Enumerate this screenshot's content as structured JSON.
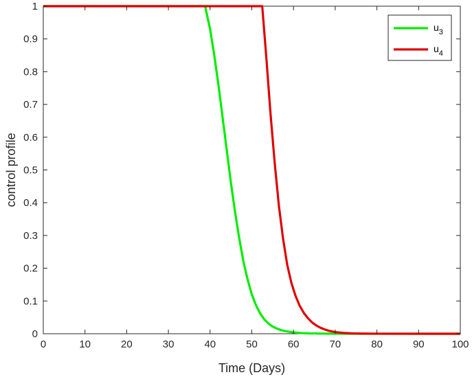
{
  "chart_data": {
    "type": "line",
    "title": "",
    "xlabel": "Time (Days)",
    "ylabel": "control profile",
    "xlim": [
      0,
      100
    ],
    "ylim": [
      0,
      1
    ],
    "xticks": [
      0,
      10,
      20,
      30,
      40,
      50,
      60,
      70,
      80,
      90,
      100
    ],
    "yticks": [
      0,
      0.1,
      0.2,
      0.3,
      0.4,
      0.5,
      0.6,
      0.7,
      0.8,
      0.9,
      1
    ],
    "grid": false,
    "legend_position": "top-right",
    "series": [
      {
        "name": "u",
        "subscript": "3",
        "color": "#00ee00",
        "x": [
          0,
          38.8,
          40,
          41,
          42,
          43,
          44,
          45,
          46,
          47,
          48,
          49,
          50,
          51,
          52,
          53,
          54,
          55,
          56,
          57,
          58,
          59,
          60,
          62,
          64,
          66,
          68,
          70,
          75,
          80,
          90,
          100
        ],
        "y": [
          1,
          1,
          0.93,
          0.85,
          0.76,
          0.66,
          0.56,
          0.46,
          0.37,
          0.29,
          0.22,
          0.165,
          0.12,
          0.087,
          0.062,
          0.044,
          0.031,
          0.022,
          0.016,
          0.011,
          0.008,
          0.006,
          0.004,
          0.002,
          0.001,
          0.0006,
          0.0003,
          0.0002,
          0,
          0,
          0,
          0
        ]
      },
      {
        "name": "u",
        "subscript": "4",
        "color": "#e00000",
        "x": [
          0,
          52.5,
          53.5,
          54.5,
          55.5,
          56.5,
          57.5,
          58.5,
          59.5,
          60.5,
          61.5,
          62.5,
          63.5,
          64.5,
          65.5,
          66.5,
          67.5,
          68.5,
          70,
          72,
          74,
          76,
          80,
          90,
          100
        ],
        "y": [
          1,
          1,
          0.84,
          0.67,
          0.52,
          0.39,
          0.29,
          0.21,
          0.155,
          0.115,
          0.085,
          0.063,
          0.047,
          0.034,
          0.025,
          0.018,
          0.013,
          0.009,
          0.005,
          0.0025,
          0.0012,
          0.0005,
          0.0001,
          0,
          0
        ]
      }
    ]
  }
}
